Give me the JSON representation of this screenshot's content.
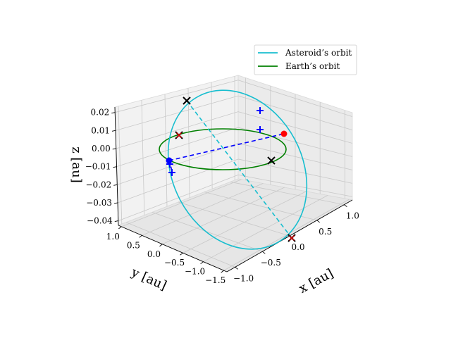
{
  "chart_data": {
    "type": "line3d",
    "title": "",
    "axes": {
      "x": {
        "label": "x [au]",
        "ticks": [
          "−1.0",
          "−0.5",
          "0.0",
          "0.5",
          "1.0"
        ]
      },
      "y": {
        "label": "y [au]",
        "ticks": [
          "1.0",
          "0.5",
          "0.0",
          "−0.5",
          "−1.0",
          "−1.5"
        ]
      },
      "z": {
        "label": "z [au]",
        "ticks": [
          "0.02",
          "0.01",
          "0.00",
          "−0.01",
          "−0.02",
          "−0.03",
          "−0.04"
        ]
      }
    },
    "grid": true,
    "legend_position": "top-right",
    "series": [
      {
        "name": "Asteroid’s orbit",
        "color": "#17becf",
        "style": "solid",
        "shape": "tilted ellipse"
      },
      {
        "name": "Earth’s orbit",
        "color": "#008000",
        "style": "solid",
        "shape": "circle in z=0 plane"
      }
    ],
    "lines": [
      {
        "color": "#17becf",
        "style": "dashed",
        "note": "asteroid apsides line"
      },
      {
        "color": "#0000ff",
        "style": "dashed",
        "note": "earth chord"
      }
    ],
    "markers": [
      {
        "type": "circle",
        "color": "#ff0000"
      },
      {
        "type": "circle",
        "color": "#0000ff"
      },
      {
        "type": "plus",
        "color": "#0000ff"
      },
      {
        "type": "plus",
        "color": "#0000ff"
      },
      {
        "type": "plus",
        "color": "#0000ff"
      },
      {
        "type": "plus",
        "color": "#0000ff"
      },
      {
        "type": "x",
        "color": "#000000"
      },
      {
        "type": "x",
        "color": "#000000"
      },
      {
        "type": "x",
        "color": "#000000"
      },
      {
        "type": "x",
        "color": "#000000"
      },
      {
        "type": "x",
        "color": "#ff0000"
      },
      {
        "type": "x",
        "color": "#ff0000"
      }
    ]
  }
}
